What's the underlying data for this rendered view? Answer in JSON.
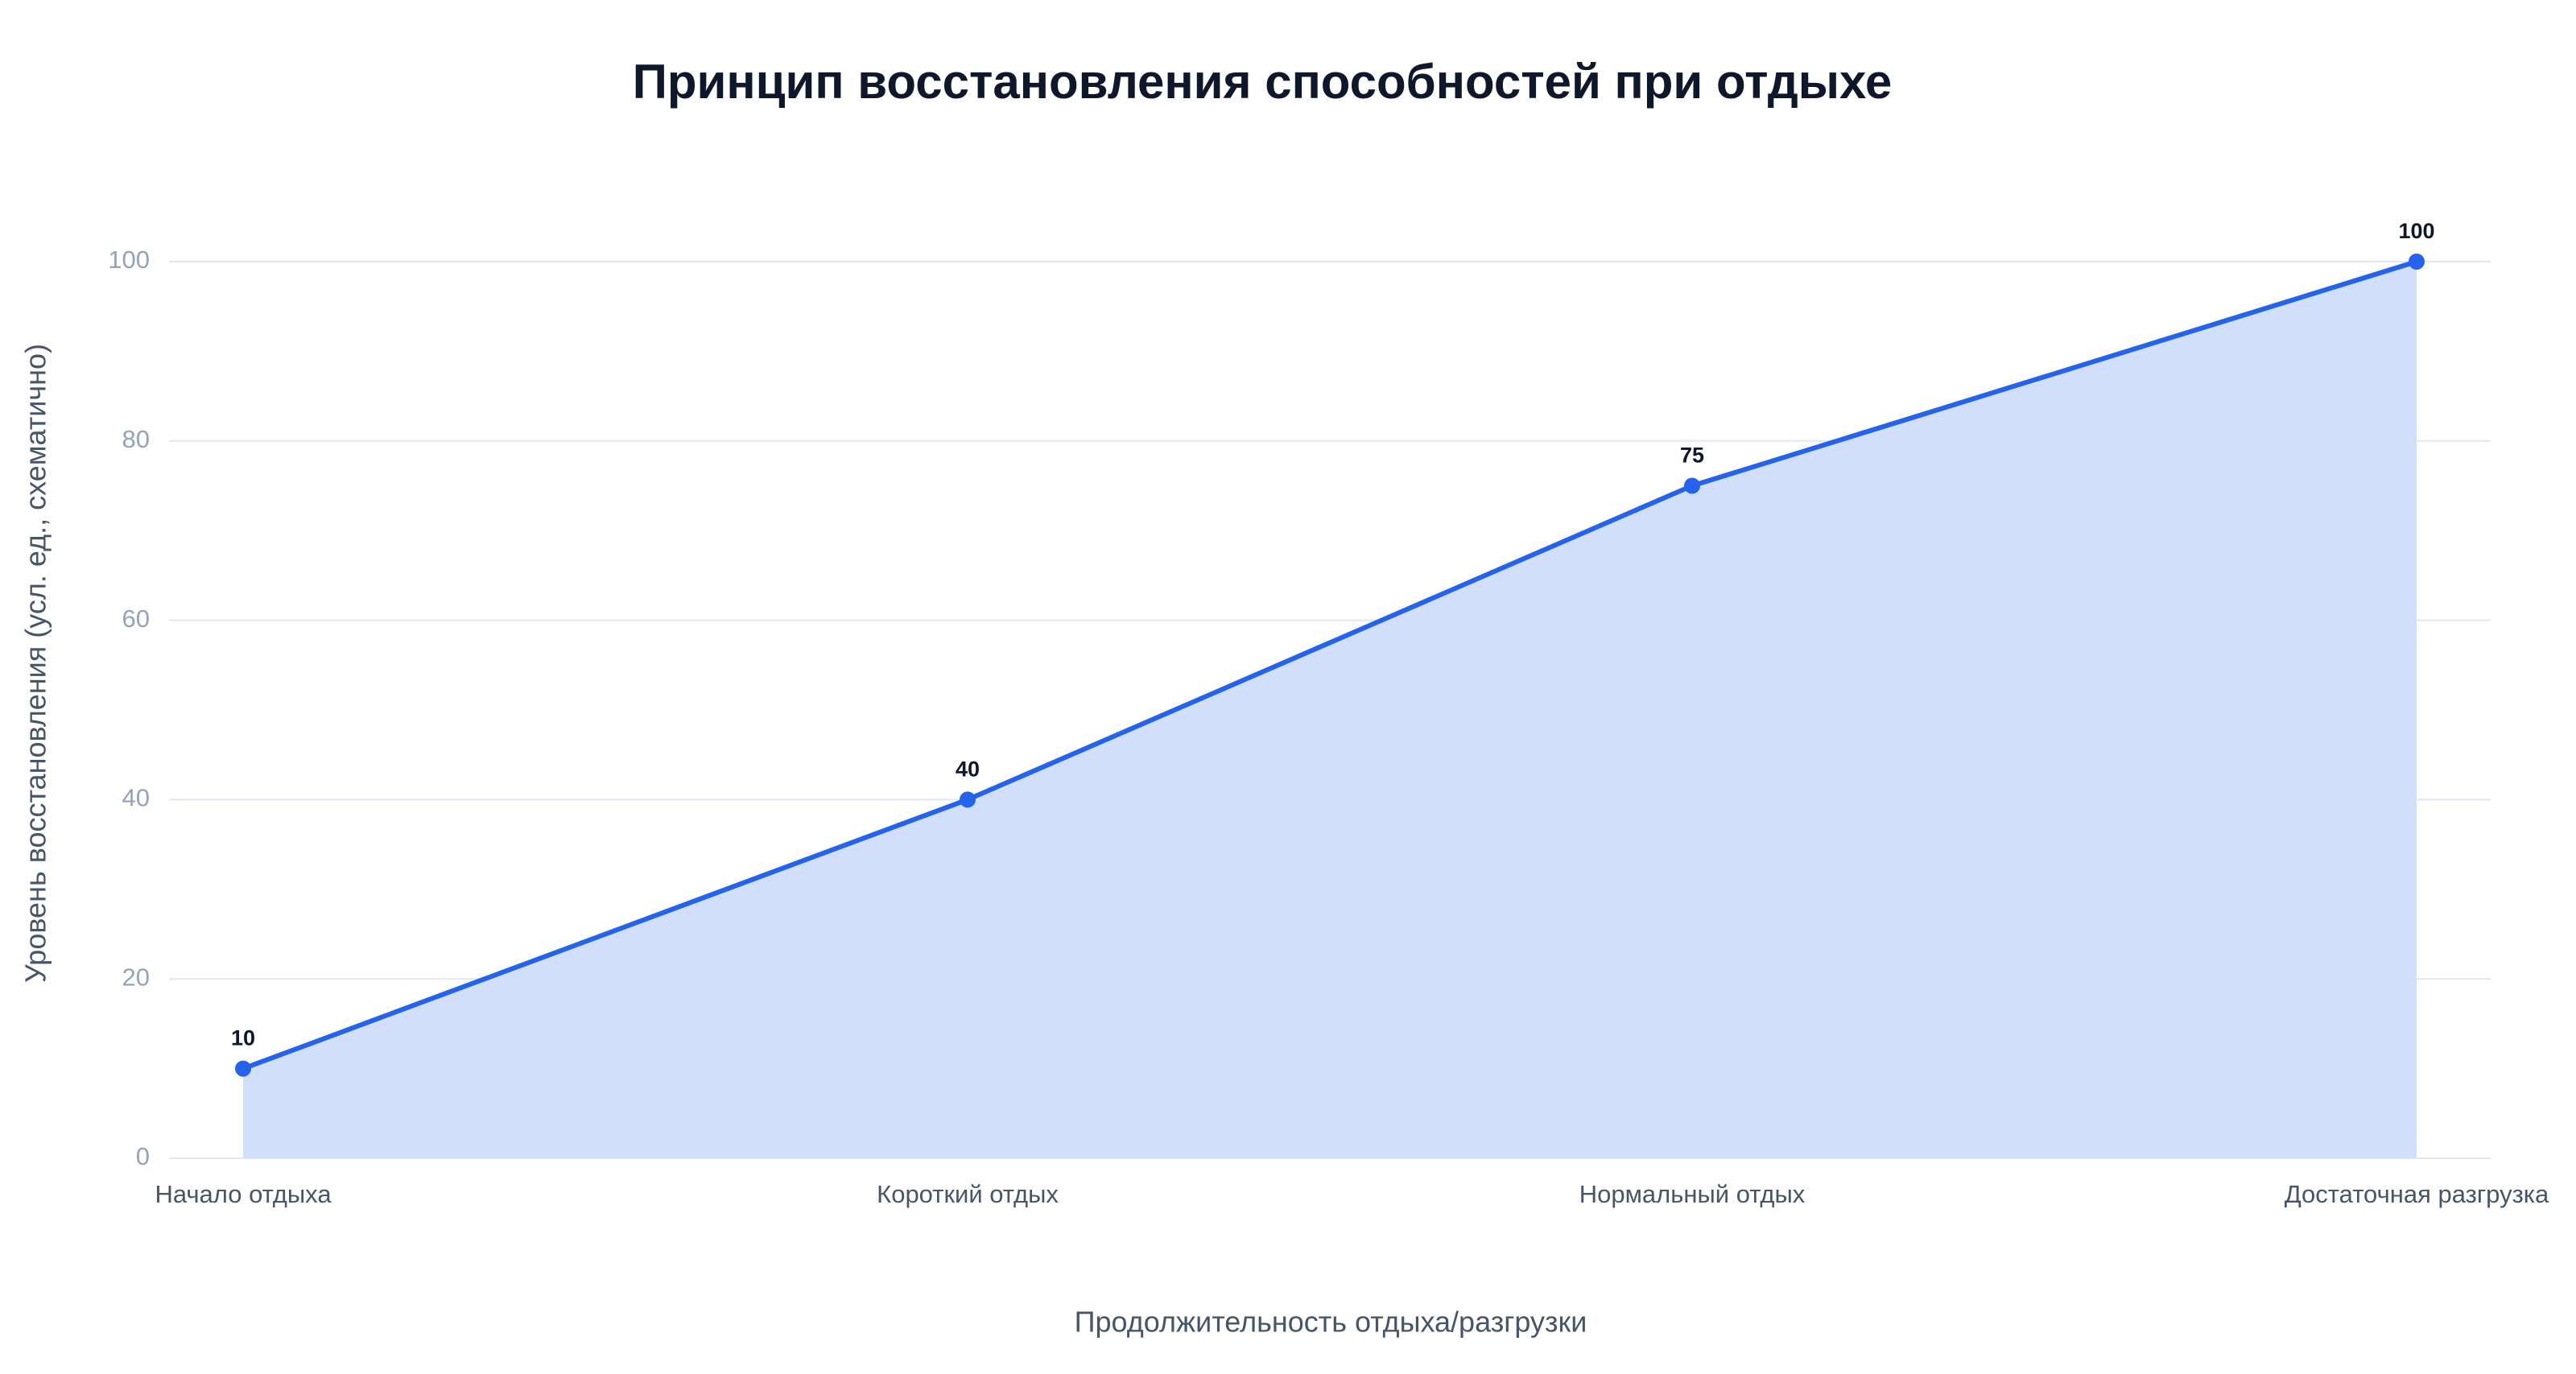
{
  "chart_data": {
    "type": "area",
    "title": "Принцип восстановления способностей при отдыхе",
    "x_label": "Продолжительность отдыха/разгрузки",
    "y_label": "Уровень восстановления (усл. ед., схематично)",
    "categories": [
      "Начало отдыха",
      "Короткий отдых",
      "Нормальный отдых",
      "Достаточная разгрузка"
    ],
    "values": [
      10,
      40,
      75,
      100
    ],
    "color": "#2563eb",
    "fill_color": "#d2dffa",
    "ylim": [
      0,
      100
    ],
    "yticks": [
      0,
      20,
      40,
      60,
      80,
      100
    ],
    "grid": true
  }
}
